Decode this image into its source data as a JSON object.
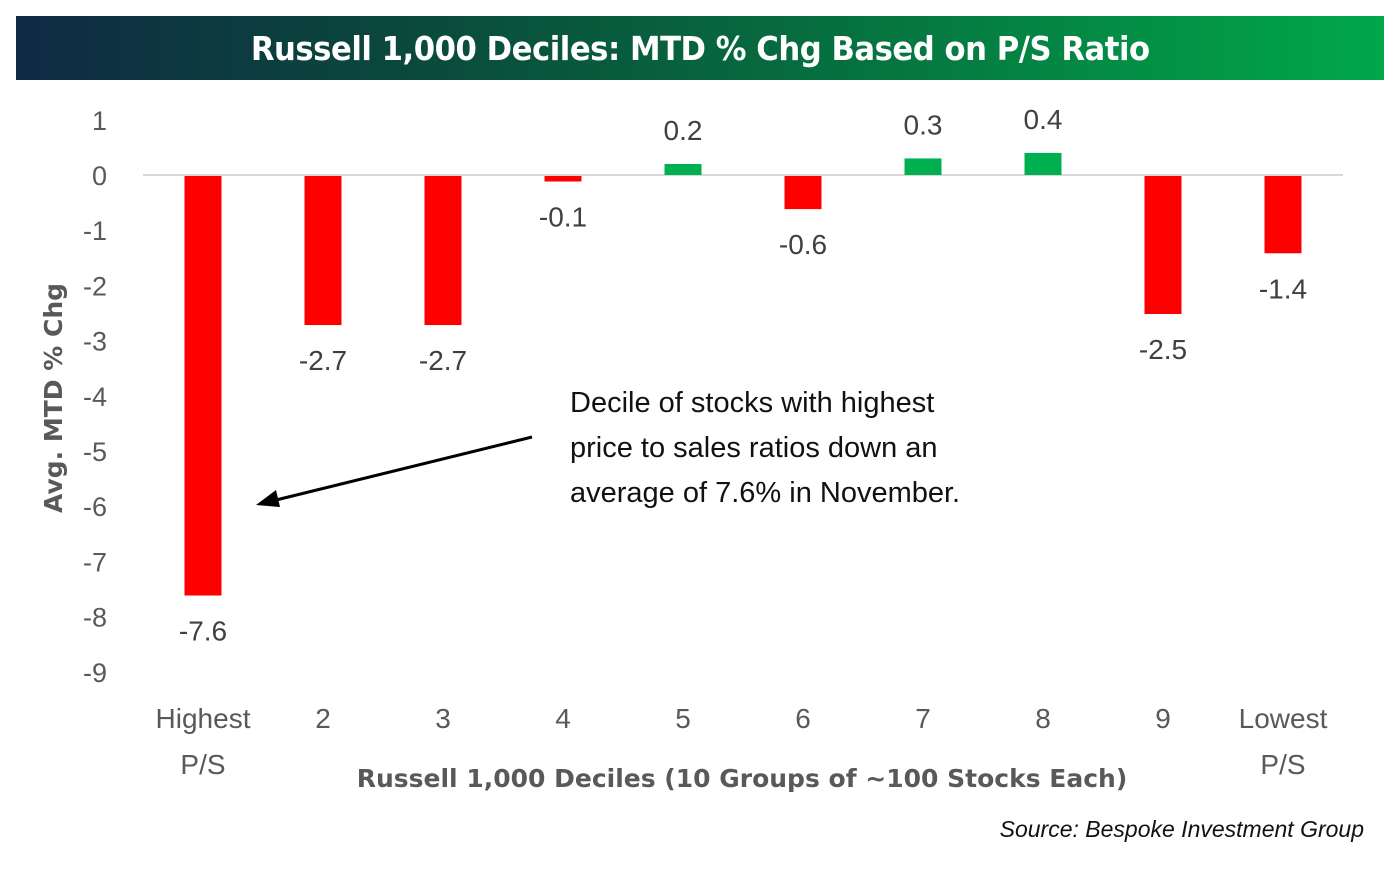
{
  "header": {
    "title": "Russell 1,000 Deciles: MTD % Chg Based on P/S Ratio"
  },
  "footer": {
    "source": "Source: Bespoke Investment Group"
  },
  "colors": {
    "negative": "#ff0000",
    "positive": "#00b050",
    "zero_line": "#d9d9d9",
    "title_gradient_start": "#0f2a44",
    "title_gradient_end": "#00a84a"
  },
  "chart_data": {
    "type": "bar",
    "title": "Russell 1,000 Deciles: MTD % Chg Based on P/S Ratio",
    "xlabel": "Russell 1,000 Deciles (10 Groups of ~100 Stocks Each)",
    "ylabel": "Avg. MTD % Chg",
    "categories": [
      [
        "Highest",
        "P/S"
      ],
      [
        "2"
      ],
      [
        "3"
      ],
      [
        "4"
      ],
      [
        "5"
      ],
      [
        "6"
      ],
      [
        "7"
      ],
      [
        "8"
      ],
      [
        "9"
      ],
      [
        "Lowest",
        "P/S"
      ]
    ],
    "values": [
      -7.6,
      -2.7,
      -2.7,
      -0.1,
      0.2,
      -0.6,
      0.3,
      0.4,
      -2.5,
      -1.4
    ],
    "data_labels": [
      "-7.6",
      "-2.7",
      "-2.7",
      "-0.1",
      "0.2",
      "-0.6",
      "0.3",
      "0.4",
      "-2.5",
      "-1.4"
    ],
    "ylim": [
      -9,
      1
    ],
    "yticks": [
      1,
      0,
      -1,
      -2,
      -3,
      -4,
      -5,
      -6,
      -7,
      -8,
      -9
    ],
    "grid": false,
    "legend": "none",
    "annotation": {
      "lines": [
        "Decile of stocks with highest",
        "price to sales ratios down an",
        "average of 7.6% in November."
      ],
      "points_to_category": "Highest P/S",
      "points_to_value": -6
    }
  }
}
